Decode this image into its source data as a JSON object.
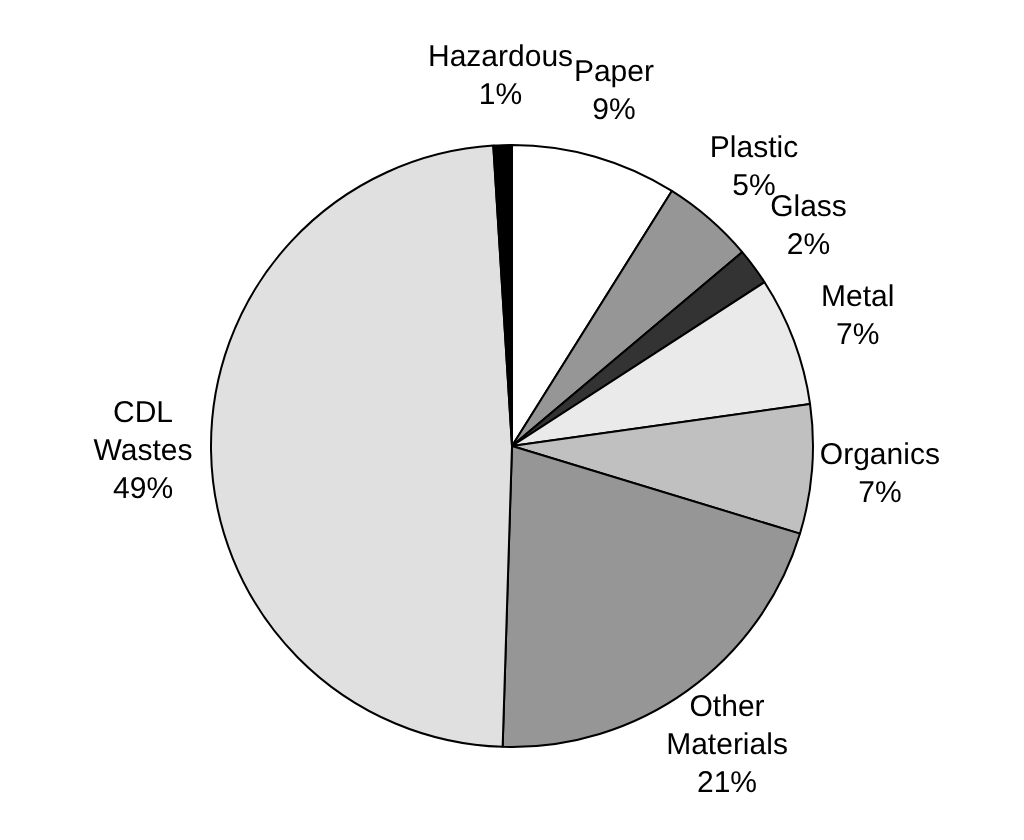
{
  "chart_data": {
    "type": "pie",
    "categories": [
      "Paper",
      "Plastic",
      "Glass",
      "Metal",
      "Organics",
      "Other Materials",
      "CDL Wastes",
      "Hazardous"
    ],
    "values": [
      9,
      5,
      2,
      7,
      7,
      21,
      49,
      1
    ],
    "value_labels": [
      "9%",
      "5%",
      "2%",
      "7%",
      "7%",
      "21%",
      "49%",
      "1%"
    ],
    "colors": [
      "#ffffff",
      "#969696",
      "#333333",
      "#eaeaea",
      "#c0c0c0",
      "#969696",
      "#e0e0e0",
      "#000000"
    ],
    "legend": false
  }
}
